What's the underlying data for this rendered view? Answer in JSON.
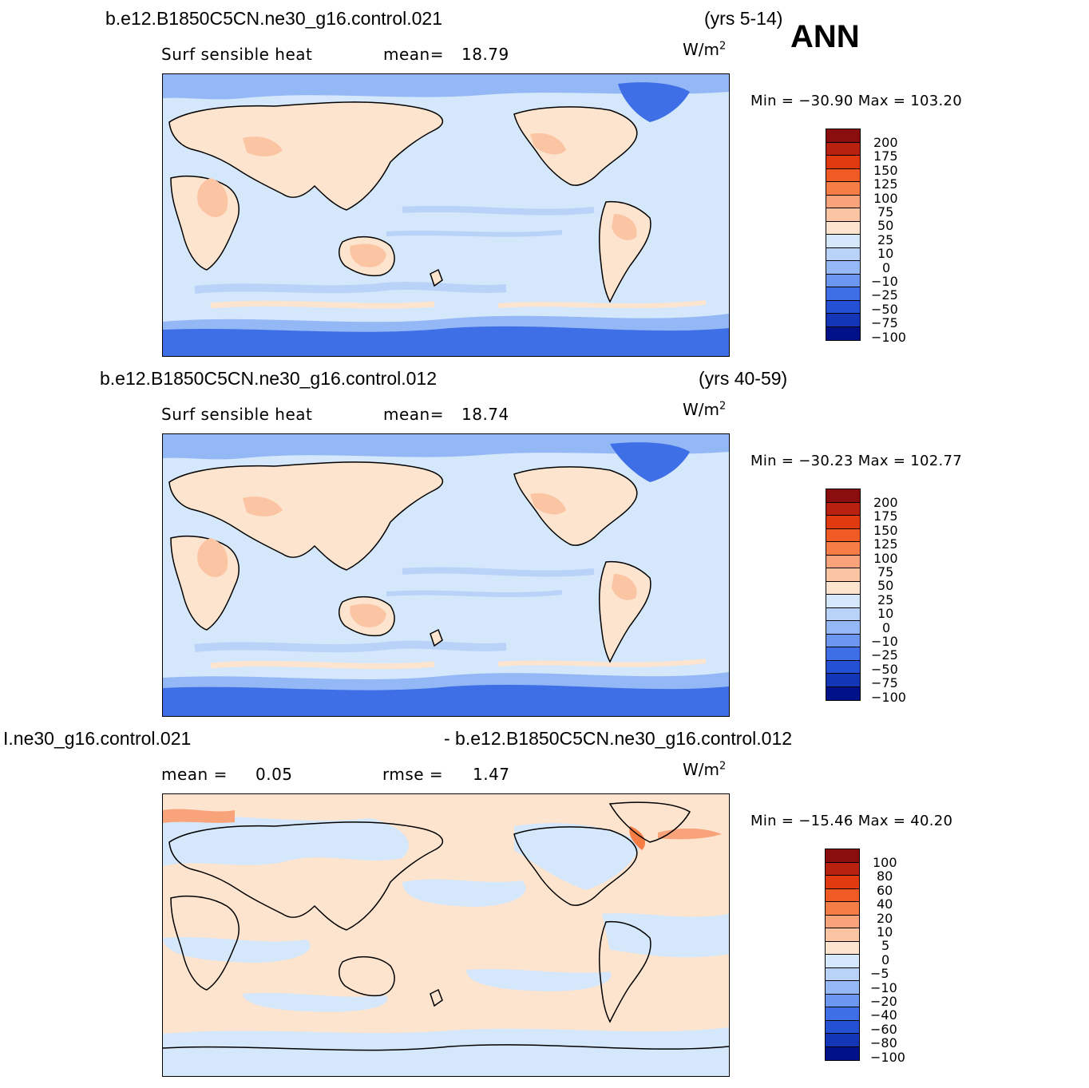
{
  "season": "ANN",
  "panels": [
    {
      "case": "b.e12.B1850C5CN.ne30_g16.control.021",
      "years": "(yrs 5-14)",
      "var_label": "Surf  sensible  heat",
      "stat1_label": "mean=",
      "stat1_value": "18.79",
      "stat2_label": "",
      "stat2_value": "",
      "units": "W/m",
      "units_sup": "2",
      "minmax": "Min  =  −30.90  Max  =  103.20",
      "colorbar_levels": [
        "200",
        "175",
        "150",
        "125",
        "100",
        "75",
        "50",
        "25",
        "10",
        "0",
        "−10",
        "−25",
        "−50",
        "−75",
        "−100"
      ],
      "colorbar_colors": [
        "#8b0e0e",
        "#b8200f",
        "#e23a10",
        "#f05a24",
        "#f67d45",
        "#f9a37a",
        "#fbc5a3",
        "#fde4cf",
        "#d5e7fa",
        "#b9d2f8",
        "#94b8f5",
        "#6b97f0",
        "#3f6fe6",
        "#2450d4",
        "#1236b5",
        "#00118a"
      ]
    },
    {
      "case": "b.e12.B1850C5CN.ne30_g16.control.012",
      "years": "(yrs 40-59)",
      "var_label": "Surf  sensible  heat",
      "stat1_label": "mean=",
      "stat1_value": "18.74",
      "stat2_label": "",
      "stat2_value": "",
      "units": "W/m",
      "units_sup": "2",
      "minmax": "Min  =  −30.23  Max  =  102.77",
      "colorbar_levels": [
        "200",
        "175",
        "150",
        "125",
        "100",
        "75",
        "50",
        "25",
        "10",
        "0",
        "−10",
        "−25",
        "−50",
        "−75",
        "−100"
      ],
      "colorbar_colors": [
        "#8b0e0e",
        "#b8200f",
        "#e23a10",
        "#f05a24",
        "#f67d45",
        "#f9a37a",
        "#fbc5a3",
        "#fde4cf",
        "#d5e7fa",
        "#b9d2f8",
        "#94b8f5",
        "#6b97f0",
        "#3f6fe6",
        "#2450d4",
        "#1236b5",
        "#00118a"
      ]
    },
    {
      "case": "I.ne30_g16.control.021",
      "years": "- b.e12.B1850C5CN.ne30_g16.control.012",
      "var_label": "",
      "stat1_label": "mean =",
      "stat1_value": "0.05",
      "stat2_label": "rmse =",
      "stat2_value": "1.47",
      "units": "W/m",
      "units_sup": "2",
      "minmax": "Min  =  −15.46  Max  =   40.20",
      "colorbar_levels": [
        "100",
        "80",
        "60",
        "40",
        "20",
        "10",
        "5",
        "0",
        "−5",
        "−10",
        "−20",
        "−40",
        "−60",
        "−80",
        "−100"
      ],
      "colorbar_colors": [
        "#8b0e0e",
        "#b8200f",
        "#e23a10",
        "#f05a24",
        "#f67d45",
        "#f9a37a",
        "#fbc5a3",
        "#fde4cf",
        "#d5e7fa",
        "#b9d2f8",
        "#94b8f5",
        "#6b97f0",
        "#3f6fe6",
        "#2450d4",
        "#1236b5",
        "#00118a"
      ]
    }
  ]
}
